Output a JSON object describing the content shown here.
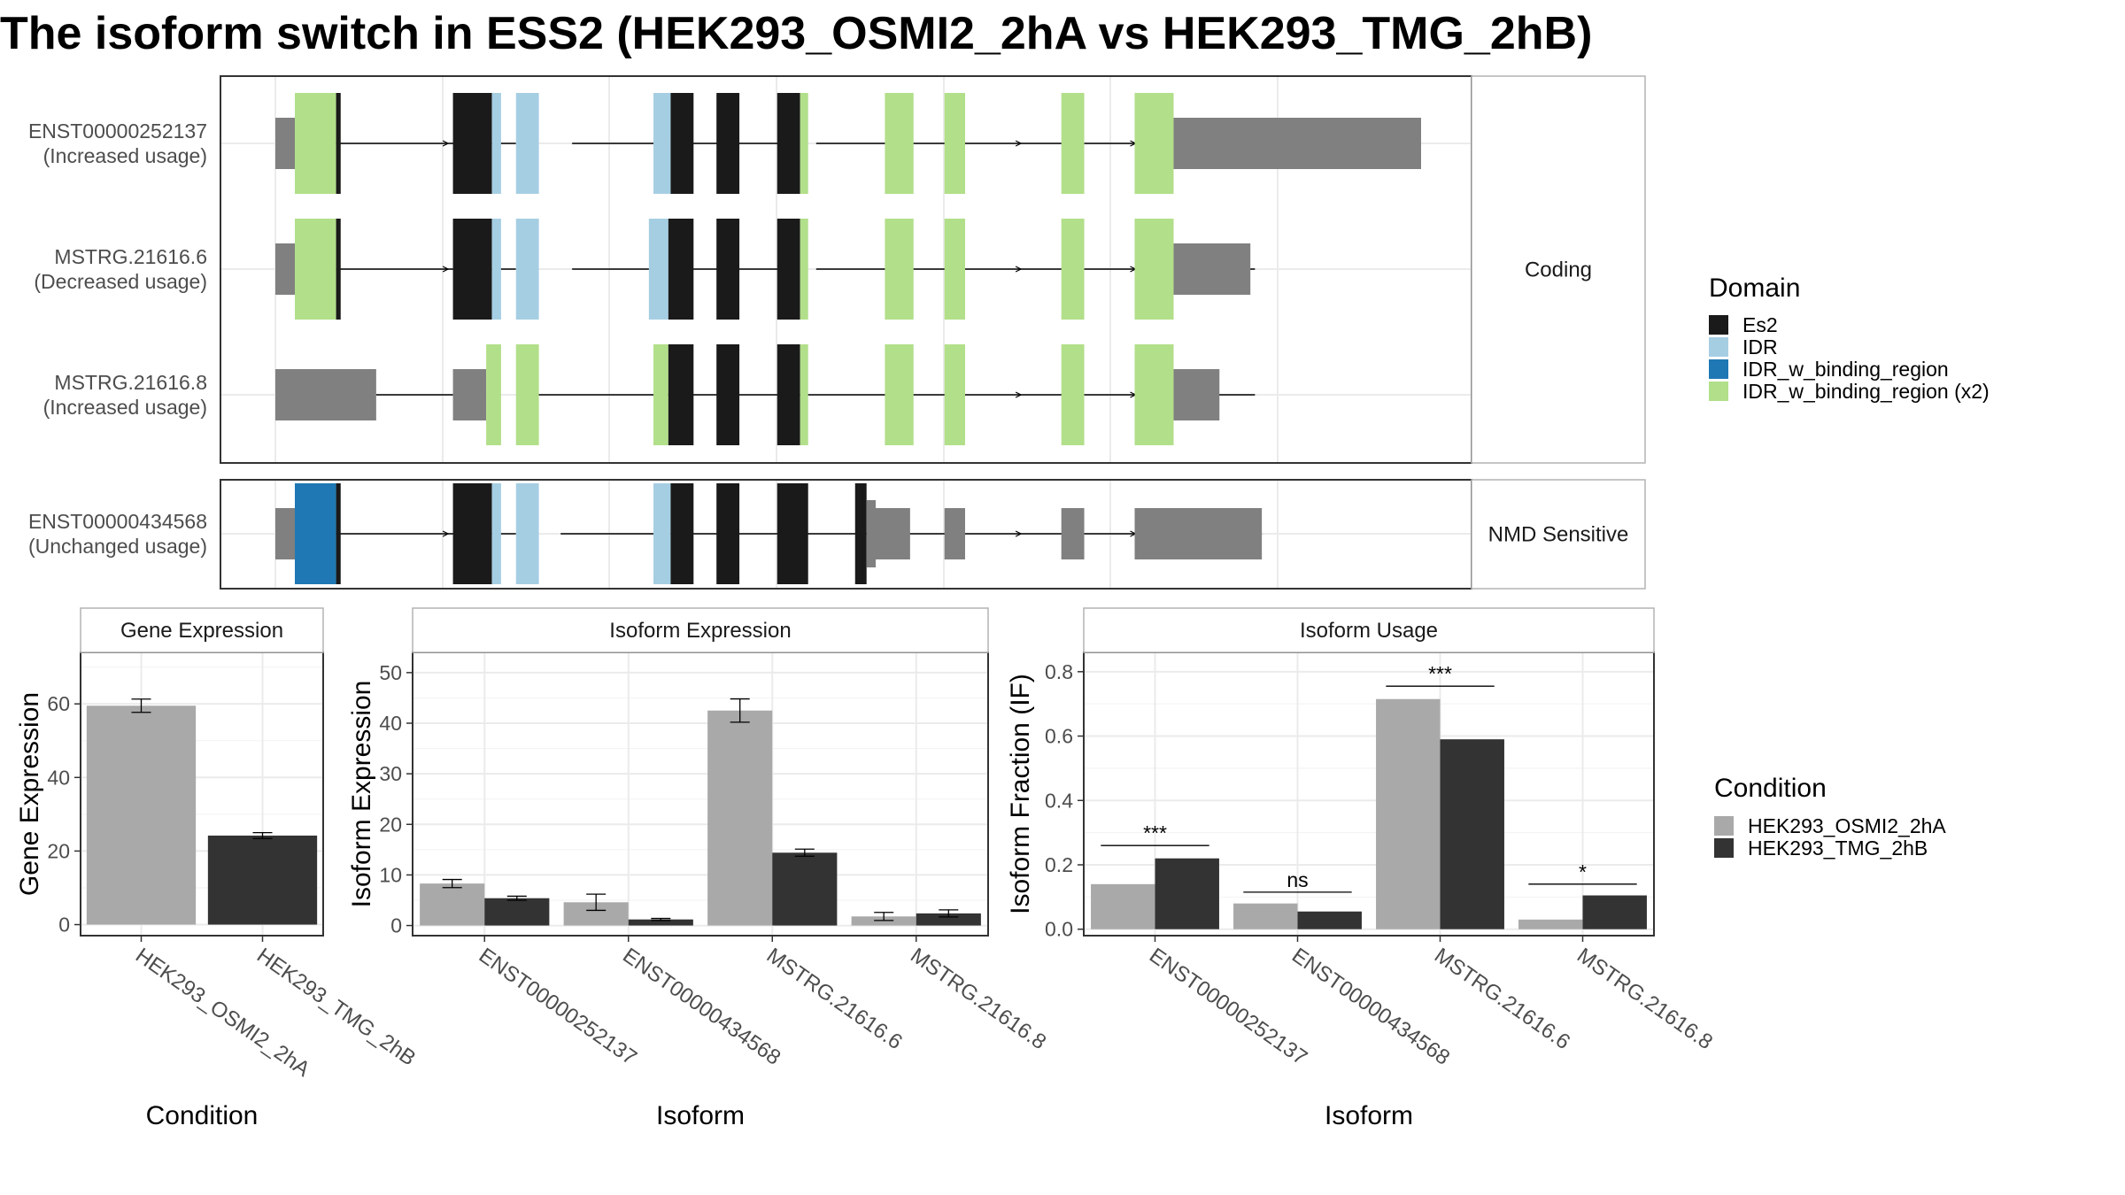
{
  "title": "The isoform switch in ESS2 (HEK293_OSMI2_2hA vs HEK293_TMG_2hB)",
  "colors": {
    "Es2": "#1a1a1a",
    "IDR": "#a6cee3",
    "IDR_w_binding_region": "#1f78b4",
    "IDR_w_binding_region (x2)": "#b2df8a",
    "utr": "#808080",
    "HEK293_OSMI2_2hA": "#a9a9a9",
    "HEK293_TMG_2hB": "#333333"
  },
  "structure": {
    "coord_range": [
      0,
      1000
    ],
    "panels": [
      {
        "strip": "Coding",
        "tracks": [
          {
            "id": "ENST00000252137",
            "usage": "(Increased usage)",
            "introns": [
              [
                38,
                210
              ],
              [
                259,
                341
              ],
              [
                359,
                451
              ],
              [
                472,
                855
              ]
            ],
            "utr": [
              [
                0,
                17
              ],
              [
                784,
                1000
              ]
            ],
            "exons": [
              {
                "s": 17,
                "e": 53,
                "d": "IDR_w_binding_region (x2)"
              },
              {
                "s": 53,
                "e": 57,
                "d": "Es2"
              },
              {
                "s": 155,
                "e": 189,
                "d": "Es2"
              },
              {
                "s": 189,
                "e": 197,
                "d": "IDR"
              },
              {
                "s": 210,
                "e": 230,
                "d": "IDR"
              },
              {
                "s": 330,
                "e": 345,
                "d": "IDR"
              },
              {
                "s": 345,
                "e": 365,
                "d": "Es2"
              },
              {
                "s": 385,
                "e": 405,
                "d": "Es2"
              },
              {
                "s": 438,
                "e": 458,
                "d": "Es2"
              },
              {
                "s": 458,
                "e": 465,
                "d": "IDR_w_binding_region (x2)"
              },
              {
                "s": 532,
                "e": 557,
                "d": "IDR_w_binding_region (x2)"
              },
              {
                "s": 584,
                "e": 602,
                "d": "IDR_w_binding_region (x2)"
              },
              {
                "s": 686,
                "e": 706,
                "d": "IDR_w_binding_region (x2)"
              },
              {
                "s": 750,
                "e": 784,
                "d": "IDR_w_binding_region (x2)"
              }
            ]
          },
          {
            "id": "MSTRG.21616.6",
            "usage": "(Decreased usage)",
            "introns": [
              [
                38,
                210
              ],
              [
                259,
                341
              ],
              [
                359,
                451
              ],
              [
                472,
                855
              ]
            ],
            "utr": [
              [
                0,
                17
              ],
              [
                784,
                851
              ]
            ],
            "exons": [
              {
                "s": 17,
                "e": 53,
                "d": "IDR_w_binding_region (x2)"
              },
              {
                "s": 53,
                "e": 57,
                "d": "Es2"
              },
              {
                "s": 155,
                "e": 189,
                "d": "Es2"
              },
              {
                "s": 189,
                "e": 197,
                "d": "IDR"
              },
              {
                "s": 210,
                "e": 230,
                "d": "IDR"
              },
              {
                "s": 326,
                "e": 343,
                "d": "IDR"
              },
              {
                "s": 343,
                "e": 365,
                "d": "Es2"
              },
              {
                "s": 385,
                "e": 405,
                "d": "Es2"
              },
              {
                "s": 438,
                "e": 458,
                "d": "Es2"
              },
              {
                "s": 458,
                "e": 465,
                "d": "IDR_w_binding_region (x2)"
              },
              {
                "s": 532,
                "e": 557,
                "d": "IDR_w_binding_region (x2)"
              },
              {
                "s": 584,
                "e": 602,
                "d": "IDR_w_binding_region (x2)"
              },
              {
                "s": 686,
                "e": 706,
                "d": "IDR_w_binding_region (x2)"
              },
              {
                "s": 750,
                "e": 784,
                "d": "IDR_w_binding_region (x2)"
              }
            ]
          },
          {
            "id": "MSTRG.21616.8",
            "usage": "(Increased usage)",
            "introns": [
              [
                88,
                155
              ],
              [
                218,
                855
              ]
            ],
            "utr": [
              [
                0,
                88
              ],
              [
                155,
                184
              ],
              [
                784,
                824
              ]
            ],
            "exons": [
              {
                "s": 184,
                "e": 197,
                "d": "IDR_w_binding_region (x2)"
              },
              {
                "s": 210,
                "e": 230,
                "d": "IDR_w_binding_region (x2)"
              },
              {
                "s": 330,
                "e": 343,
                "d": "IDR_w_binding_region (x2)"
              },
              {
                "s": 343,
                "e": 365,
                "d": "Es2"
              },
              {
                "s": 385,
                "e": 405,
                "d": "Es2"
              },
              {
                "s": 438,
                "e": 458,
                "d": "Es2"
              },
              {
                "s": 458,
                "e": 465,
                "d": "IDR_w_binding_region (x2)"
              },
              {
                "s": 532,
                "e": 557,
                "d": "IDR_w_binding_region (x2)"
              },
              {
                "s": 584,
                "e": 602,
                "d": "IDR_w_binding_region (x2)"
              },
              {
                "s": 686,
                "e": 706,
                "d": "IDR_w_binding_region (x2)"
              },
              {
                "s": 750,
                "e": 784,
                "d": "IDR_w_binding_region (x2)"
              }
            ]
          }
        ]
      },
      {
        "strip": "NMD Sensitive",
        "tracks": [
          {
            "id": "ENST00000434568",
            "usage": "(Unchanged usage)",
            "introns": [
              [
                38,
                210
              ],
              [
                249,
                861
              ]
            ],
            "utr": [
              [
                0,
                17
              ],
              [
                519,
                554
              ],
              [
                584,
                602
              ],
              [
                686,
                706
              ],
              [
                750,
                861
              ]
            ],
            "exons": [
              {
                "s": 17,
                "e": 53,
                "d": "IDR_w_binding_region"
              },
              {
                "s": 53,
                "e": 57,
                "d": "Es2"
              },
              {
                "s": 155,
                "e": 189,
                "d": "Es2"
              },
              {
                "s": 189,
                "e": 197,
                "d": "IDR"
              },
              {
                "s": 210,
                "e": 230,
                "d": "IDR"
              },
              {
                "s": 330,
                "e": 345,
                "d": "IDR"
              },
              {
                "s": 345,
                "e": 365,
                "d": "Es2"
              },
              {
                "s": 385,
                "e": 405,
                "d": "Es2"
              },
              {
                "s": 438,
                "e": 465,
                "d": "Es2"
              },
              {
                "s": 506,
                "e": 516,
                "d": "Es2"
              },
              {
                "s": 516,
                "e": 524,
                "d": "utr_step"
              }
            ]
          }
        ]
      }
    ]
  },
  "legends": {
    "domain": {
      "title": "Domain",
      "items": [
        "Es2",
        "IDR",
        "IDR_w_binding_region",
        "IDR_w_binding_region (x2)"
      ]
    },
    "condition": {
      "title": "Condition",
      "items": [
        "HEK293_OSMI2_2hA",
        "HEK293_TMG_2hB"
      ]
    }
  },
  "chart_data": [
    {
      "type": "bar",
      "strip": "Gene Expression",
      "xlabel": "Condition",
      "ylabel": "Gene Expression",
      "ylim": [
        -3,
        74
      ],
      "yticks": [
        0,
        20,
        40,
        60
      ],
      "categories": [
        "HEK293_OSMI2_2hA",
        "HEK293_TMG_2hB"
      ],
      "series": [
        {
          "name": "HEK293_OSMI2_2hA",
          "values": [
            59.5,
            null
          ],
          "err": [
            1.8,
            null
          ]
        },
        {
          "name": "HEK293_TMG_2hB",
          "values": [
            null,
            24.2
          ],
          "err": [
            null,
            0.8
          ]
        }
      ]
    },
    {
      "type": "bar",
      "strip": "Isoform Expression",
      "xlabel": "Isoform",
      "ylabel": "Isoform Expression",
      "ylim": [
        -2,
        54
      ],
      "yticks": [
        0,
        10,
        20,
        30,
        40,
        50
      ],
      "categories": [
        "ENST00000252137",
        "ENST00000434568",
        "MSTRG.21616.6",
        "MSTRG.21616.8"
      ],
      "series": [
        {
          "name": "HEK293_OSMI2_2hA",
          "values": [
            8.3,
            4.6,
            42.5,
            1.8
          ],
          "err": [
            0.8,
            1.6,
            2.3,
            0.8
          ]
        },
        {
          "name": "HEK293_TMG_2hB",
          "values": [
            5.4,
            1.2,
            14.4,
            2.4
          ],
          "err": [
            0.4,
            0.2,
            0.7,
            0.7
          ]
        }
      ]
    },
    {
      "type": "bar",
      "strip": "Isoform Usage",
      "xlabel": "Isoform",
      "ylabel": "Isoform Fraction (IF)",
      "ylim": [
        -0.02,
        0.86
      ],
      "yticks": [
        0.0,
        0.2,
        0.4,
        0.6,
        0.8
      ],
      "categories": [
        "ENST00000252137",
        "ENST00000434568",
        "MSTRG.21616.6",
        "MSTRG.21616.8"
      ],
      "series": [
        {
          "name": "HEK293_OSMI2_2hA",
          "values": [
            0.14,
            0.08,
            0.715,
            0.03
          ]
        },
        {
          "name": "HEK293_TMG_2hB",
          "values": [
            0.22,
            0.055,
            0.59,
            0.105
          ]
        }
      ],
      "significance": [
        {
          "label": "***",
          "y": 0.26
        },
        {
          "label": "ns",
          "y": 0.115
        },
        {
          "label": "***",
          "y": 0.755
        },
        {
          "label": "*",
          "y": 0.14
        }
      ]
    }
  ]
}
